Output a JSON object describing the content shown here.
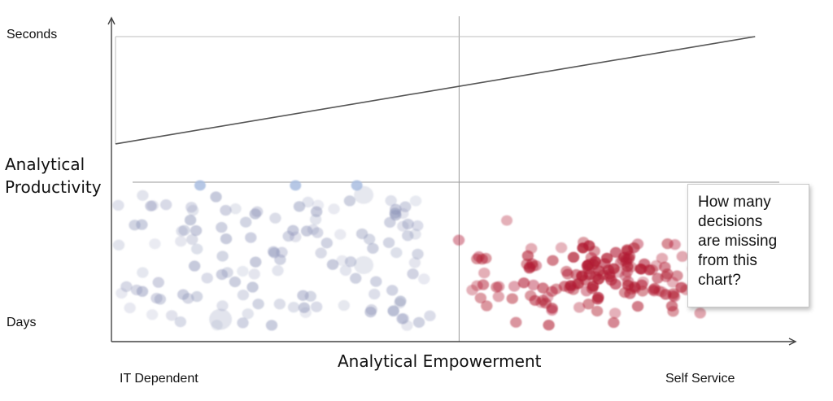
{
  "chart_data": {
    "type": "scatter",
    "title": "",
    "xlabel": "Analytical Empowerment",
    "ylabel": "Analytical Productivity",
    "x_tick_labels": [
      "IT Dependent",
      "Self Service"
    ],
    "y_tick_labels": [
      "Seconds",
      "Days"
    ],
    "annotation_lines": [
      "How many",
      "decisions",
      "are missing",
      "from this",
      "chart?"
    ],
    "clusters": [
      {
        "color": "#8d94b8",
        "n": 130,
        "x_range": [
          0.01,
          0.47
        ],
        "y_range": [
          0.05,
          0.46
        ]
      },
      {
        "color": "#b21f35",
        "n": 150,
        "x_range": [
          0.5,
          0.9
        ],
        "y_range": [
          0.03,
          0.37
        ]
      }
    ],
    "highlight_points": [
      {
        "color": "#a9bde0",
        "x": 0.13,
        "y": 0.49
      },
      {
        "color": "#a9bde0",
        "x": 0.27,
        "y": 0.49
      },
      {
        "color": "#a9bde0",
        "x": 0.36,
        "y": 0.49
      }
    ],
    "trend_line": {
      "from": [
        0.0,
        0.62
      ],
      "to": [
        0.98,
        0.96
      ]
    },
    "reference_line_y": 0.5,
    "divider_x": 0.51
  }
}
